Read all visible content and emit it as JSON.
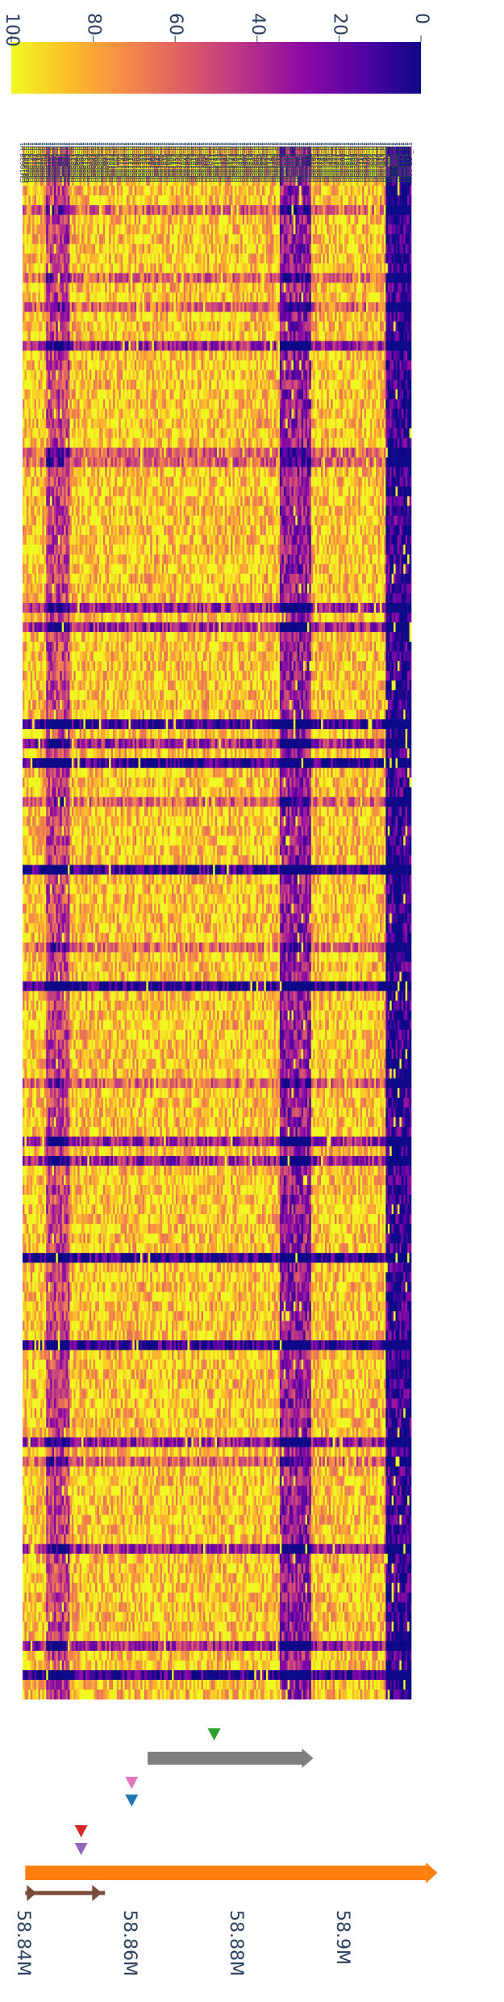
{
  "chart_data": {
    "type": "heatmap",
    "orientation": "rotated-90",
    "colorbar": {
      "min": 0,
      "max": 100,
      "ticks": [
        100,
        80,
        60,
        40,
        20,
        0
      ],
      "colormap": "plasma",
      "colors": [
        "#0d0887",
        "#5302a3",
        "#8b0aa5",
        "#b83289",
        "#db5c68",
        "#f48849",
        "#febd2a",
        "#f0f921"
      ]
    },
    "samples": [
      "HG04214_H1",
      "HG04211_H1",
      "HG04205_H1",
      "HG04184_H1",
      "HG04177_H1",
      "HG04076_H1",
      "HG04056_H1",
      "HG04039_H1",
      "HG04021_H1",
      "HG04001_H1",
      "HG03997_H1",
      "HG03993_H1",
      "HG03972_H1",
      "HG03953_H1",
      "HG03925_H1",
      "HG03919_H1",
      "HG03898_H1",
      "HG03874_H1",
      "HG03857_H1",
      "HG03838_H1",
      "HG03822_H1",
      "HG03808_H1",
      "HG03772_H1",
      "HG03758_H1",
      "HG03742_H1",
      "HG03714_H1",
      "HG03702_H1",
      "HG03679_H1",
      "HG03669_H1",
      "HG03654_H1",
      "HG03640_H1",
      "HG03625_H1",
      "HG03611_H1",
      "HG03579_H1",
      "HG03564_H1",
      "HG03540_H1",
      "HG03521_H1",
      "HG03492_H1",
      "HG03471_H1",
      "HG03453_H1",
      "HG03438_H1",
      "HG03410_H1",
      "HG03369_H1",
      "HG03342_H1",
      "HG03301_H1",
      "HG03279_H1",
      "HG03247_H1",
      "HG03224_H1",
      "HG03193_H1",
      "HG03168_H1",
      "HG03139_H1",
      "HG03111_H1",
      "HG03098_H1",
      "HG03072_H1",
      "HG03052_H1",
      "HG03039_H1",
      "HG03017_H1",
      "HG02992_H1",
      "HG02970_H1",
      "HG02953_H1",
      "HG02933_H1",
      "HG02922_H1",
      "HG02896_H1",
      "HG02886_H1",
      "HG02870_H1",
      "HG02860_H1",
      "HG02845_H1",
      "HG02819_H1",
      "HG02807_H1",
      "HG02789_H1",
      "HG02768_H1",
      "HG02743_H1",
      "HG02723_H1",
      "HG02699_H1",
      "HG02679_H1",
      "HG02650_H1",
      "HG02630_H1",
      "HG02601_H1",
      "HG02584_H1",
      "HG02562_H1",
      "HG02538_H1",
      "HG02514_H1",
      "HG02490_H1",
      "HG02475_H1",
      "HG02461_H1",
      "HG02449_H1",
      "HG02429_H1",
      "HG02412_H1",
      "HG02389_H1",
      "HG02367_H1",
      "HG02343_H1",
      "HG02321_H1",
      "HG02293_H1",
      "HG02265_H1",
      "HG02247_H1",
      "HG02221_H1",
      "HG02199_H1",
      "HG02173_H1",
      "HG02152_H1",
      "HG02131_H1",
      "HG02111_H1",
      "HG02091_H1",
      "HG02070_H1",
      "HG02047_H1",
      "HG02025_H1",
      "HG02004_H1",
      "HG01983_H1",
      "HG01968_H1",
      "HG01953_H1",
      "HG01937_H1",
      "HG01919_H1",
      "HG01897_H1",
      "HG01876_H1",
      "HG01859_H1",
      "HG01842_H1",
      "HG01827_H1",
      "HG01808_H1",
      "HG01789_H1",
      "HG01772_H1",
      "HG01750_H1",
      "HG01727_H1",
      "HG01705_H1",
      "HG01688_H1",
      "HG01665_H1",
      "HG01639_H1",
      "HG01616_H1",
      "HG01592_H1",
      "HG01566_H1",
      "HG01547_H1",
      "HG01523_H1",
      "HG01496_H1",
      "HG01468_H1",
      "HG01443_H1",
      "HG01419_H1",
      "HG01395_H1",
      "HG01373_H1",
      "HG01351_H1",
      "HG01326_H1",
      "HG01305_H1",
      "HG01283_H1",
      "HG01258_H1",
      "HG01239_H1",
      "HG01218_H1",
      "HG01198_H1",
      "HG01178_H1",
      "HG01163_H1",
      "HG01142_H1",
      "HG01122_H1",
      "HG01103_H1",
      "HG01084_H1",
      "HG01067_H1",
      "HG01050_H1",
      "HG01032_H1",
      "HG01013_H1",
      "HG00993_H1",
      "HG00973_H1",
      "HG00951_H1",
      "HG00930_H1",
      "HG00909_H1",
      "HG00886_H1",
      "HG00866_H1",
      "HG00843_H1",
      "HG00821_H1",
      "HG00799_H1",
      "HG00776_H1",
      "HG00753_H1",
      "HG00731_H1",
      "HG00708_H1",
      "HG00687_H1",
      "HG00664_H1",
      "HG00642_H1",
      "HG00621_H1",
      "HG00597_H1",
      "HG00575_H1",
      "HG00552_H1",
      "HG00531_H1",
      "HG00509_H1",
      "HG00486_H1",
      "HG00463_H1",
      "HG00441_H1",
      "HG00419_H1",
      "HG00396_H1",
      "HG00374_H1",
      "HG00351_H1",
      "HG00329_H1",
      "HG00306_H1",
      "HG00284_H1",
      "HG00261_H1",
      "HG00239_H1",
      "HG00216_H1",
      "HG00194_H1",
      "HG00171_H1",
      "HG00149_H1",
      "HG00126_H1",
      "HG00104_H1",
      "GM19443_H1",
      "GM19204_H1",
      "GM19038_H1"
    ],
    "genome_axis": {
      "ticks": [
        "58.84M",
        "58.86M",
        "58.88M",
        "58.9M"
      ],
      "tick_values_mb": [
        58.84,
        58.86,
        58.88,
        58.9
      ],
      "range_mb": [
        58.84,
        58.92
      ]
    },
    "tracks": [
      {
        "kind": "arrow",
        "color": "#7a4a3a",
        "start_mb": 58.8405,
        "end_mb": 58.8555,
        "direction": "forward",
        "lane": 0
      },
      {
        "kind": "bar",
        "color": "#ff7f0e",
        "start_mb": 58.8405,
        "end_mb": 58.9158,
        "direction": "reverse",
        "lane": 1
      },
      {
        "kind": "marker",
        "color": "#9467bd",
        "at_mb": 58.851,
        "lane": 2
      },
      {
        "kind": "marker",
        "color": "#d62728",
        "at_mb": 58.851,
        "lane": 3
      },
      {
        "kind": "marker",
        "color": "#1f77b4",
        "at_mb": 58.8605,
        "lane": 4
      },
      {
        "kind": "marker",
        "color": "#e377c2",
        "at_mb": 58.8605,
        "lane": 5
      },
      {
        "kind": "bar",
        "color": "#7f7f7f",
        "start_mb": 58.8635,
        "end_mb": 58.8925,
        "direction": "forward",
        "lane": 6
      },
      {
        "kind": "marker",
        "color": "#2ca02c",
        "at_mb": 58.876,
        "lane": 7
      }
    ]
  }
}
